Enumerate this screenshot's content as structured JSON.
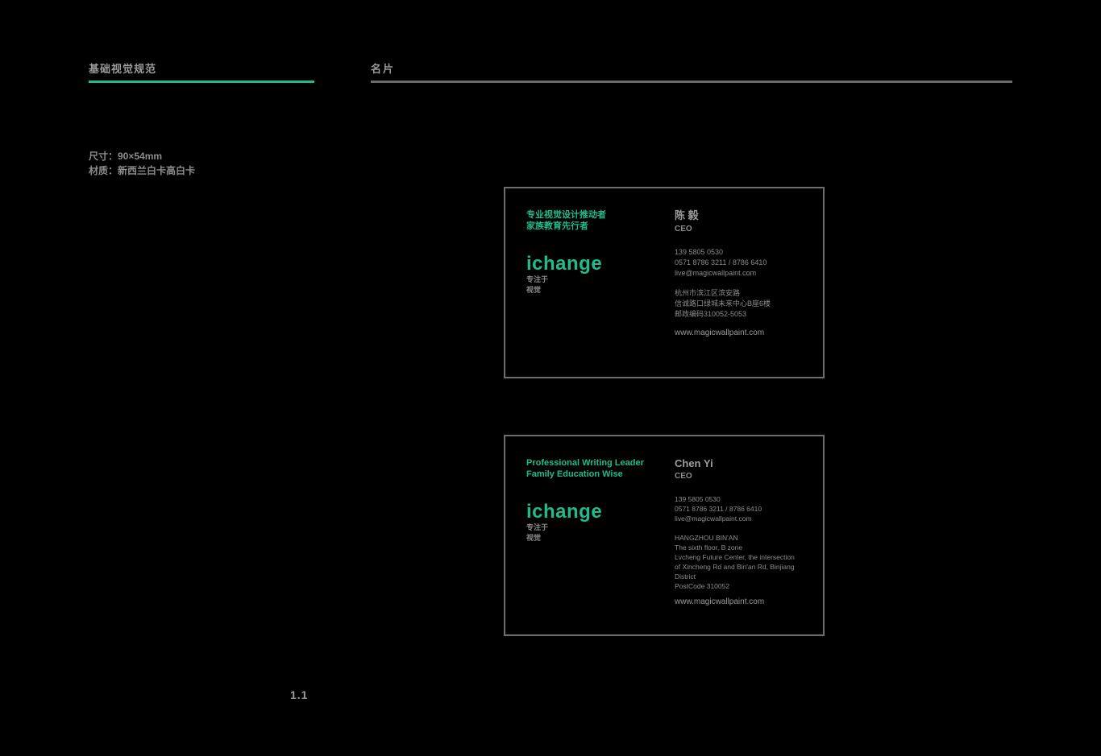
{
  "header": {
    "left_title": "基础视觉规范",
    "right_title": "名片",
    "accent_color": "#1fbb8c",
    "rule_color": "#6b6b6b"
  },
  "spec": {
    "size_line": "尺寸：90×54mm",
    "material_line": "材质：新西兰白卡高白卡"
  },
  "page_number": "1.1",
  "logo": {
    "word": "ichange",
    "sub_line1": "专注于",
    "sub_line2": "视觉"
  },
  "card_cn": {
    "slogan_line1": "专业视觉设计推动者",
    "slogan_line2": "家族教育先行者",
    "name": "陈 毅",
    "title": "CEO",
    "phone_label": "139 5805 0530",
    "tel_line": "0571 8786 3211 / 8786 6410",
    "email": "live@magicwallpaint.com",
    "addr_line1": "杭州市滨江区滨安路",
    "addr_line2": "信诚路口绿城未来中心B座6楼",
    "addr_line3": "邮政编码310052-5053",
    "web": "www.magicwallpaint.com"
  },
  "card_en": {
    "slogan_line1": "Professional Writing Leader",
    "slogan_line2": "Family Education Wise",
    "name": "Chen Yi",
    "title": "CEO",
    "phone_label": "139 5805 0530",
    "tel_line": "0571 8786 3211 / 8786 6410",
    "email": "live@magicwallpaint.com",
    "addr_head": "HANGZHOU BIN'AN",
    "addr_line1": "The sixth floor, B zone",
    "addr_line2": "Lvcheng Future Center, the intersection",
    "addr_line3": "of Xincheng Rd and Bin'an Rd, Binjiang District",
    "addr_line4": "PostCode 310052",
    "web": "www.magicwallpaint.com"
  }
}
